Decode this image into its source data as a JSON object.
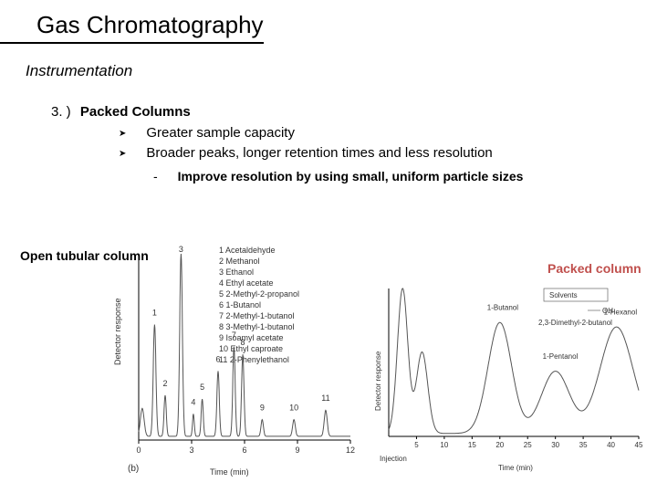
{
  "title": "Gas Chromatography",
  "subtitle": "Instrumentation",
  "section": {
    "num": "3. )",
    "label": "Packed Columns"
  },
  "bullets": [
    "Greater sample capacity",
    "Broader peaks, longer retention times and less resolution"
  ],
  "subnote": "Improve resolution by using small, uniform particle sizes",
  "labels": {
    "left": "Open tubular column",
    "right": "Packed column"
  },
  "legend": [
    {
      "n": "1",
      "name": "Acetaldehyde"
    },
    {
      "n": "2",
      "name": "Methanol"
    },
    {
      "n": "3",
      "name": "Ethanol"
    },
    {
      "n": "4",
      "name": "Ethyl acetate"
    },
    {
      "n": "5",
      "name": "2-Methyl-2-propanol"
    },
    {
      "n": "6",
      "name": "1-Butanol"
    },
    {
      "n": "7",
      "name": "2-Methyl-1-butanol"
    },
    {
      "n": "8",
      "name": "3-Methyl-1-butanol"
    },
    {
      "n": "9",
      "name": "Isoamyl acetate"
    },
    {
      "n": "10",
      "name": "Ethyl caproate"
    },
    {
      "n": "11",
      "name": "2-Phenylethanol"
    }
  ],
  "left_chart": {
    "type": "line",
    "xlim": [
      0,
      12
    ],
    "xtick_step": 3,
    "xticks": [
      0,
      3,
      6,
      9,
      12
    ],
    "ylim": [
      0,
      100
    ],
    "xlabel": "Time (min)",
    "ylabel": "Detector response",
    "panel_label": "(b)",
    "line_color": "#555555",
    "line_width": 1,
    "background_color": "#ffffff",
    "axis_color": "#000000",
    "peaks": [
      {
        "x": 0.2,
        "h": 15,
        "w": 0.25,
        "label": ""
      },
      {
        "x": 0.9,
        "h": 60,
        "w": 0.18,
        "label": "1"
      },
      {
        "x": 1.5,
        "h": 22,
        "w": 0.15,
        "label": "2"
      },
      {
        "x": 2.4,
        "h": 98,
        "w": 0.18,
        "label": "3"
      },
      {
        "x": 3.1,
        "h": 12,
        "w": 0.12,
        "label": "4"
      },
      {
        "x": 3.6,
        "h": 20,
        "w": 0.14,
        "label": "5"
      },
      {
        "x": 4.5,
        "h": 35,
        "w": 0.16,
        "label": "6"
      },
      {
        "x": 5.4,
        "h": 48,
        "w": 0.16,
        "label": "7"
      },
      {
        "x": 5.9,
        "h": 44,
        "w": 0.16,
        "label": "8"
      },
      {
        "x": 7.0,
        "h": 9,
        "w": 0.16,
        "label": "9"
      },
      {
        "x": 8.8,
        "h": 9,
        "w": 0.18,
        "label": "10"
      },
      {
        "x": 10.6,
        "h": 14,
        "w": 0.2,
        "label": "11"
      }
    ]
  },
  "right_chart": {
    "type": "line",
    "xlim": [
      0,
      45
    ],
    "xticks": [
      5,
      10,
      15,
      20,
      25,
      30,
      35,
      40,
      45
    ],
    "ylim": [
      0,
      100
    ],
    "xlabel": "Time (min)",
    "ylabel": "Detector response",
    "inj_label": "Injection",
    "line_color": "#555555",
    "line_width": 1,
    "background_color": "#ffffff",
    "axis_color": "#000000",
    "solvent_box": {
      "label": "Solvents",
      "sub1": "OH",
      "sub2": "2,3-Dimethyl-2-butanol"
    },
    "peaks": [
      {
        "x": 2.5,
        "h": 98,
        "w": 2.2,
        "label": ""
      },
      {
        "x": 6.0,
        "h": 55,
        "w": 2.4,
        "label": ""
      },
      {
        "x": 20,
        "h": 75,
        "w": 5.0,
        "label": "1-Butanol"
      },
      {
        "x": 30,
        "h": 42,
        "w": 6.0,
        "label": "1-Pentanol"
      },
      {
        "x": 41,
        "h": 72,
        "w": 7.0,
        "label": "1-Hexanol"
      }
    ]
  }
}
